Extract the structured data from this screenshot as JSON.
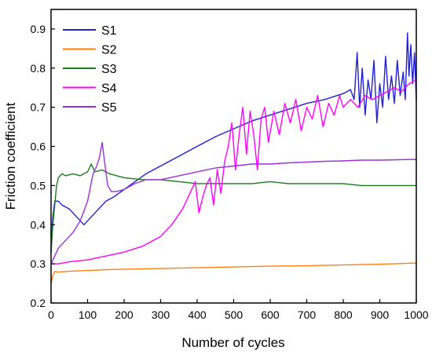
{
  "chart_data": {
    "type": "line",
    "xlabel": "Number of cycles",
    "ylabel": "Friction coefficient",
    "xlim": [
      0,
      1000
    ],
    "ylim": [
      0.2,
      0.95
    ],
    "xticks": [
      0,
      100,
      200,
      300,
      400,
      500,
      600,
      700,
      800,
      900,
      1000
    ],
    "yticks": [
      0.2,
      0.3,
      0.4,
      0.5,
      0.6,
      0.7,
      0.8,
      0.9
    ],
    "grid": false,
    "legend_position": "top-left",
    "series": [
      {
        "name": "S1",
        "color": "#1f1fd6",
        "x": [
          0,
          5,
          10,
          20,
          30,
          50,
          70,
          90,
          110,
          130,
          150,
          170,
          200,
          230,
          260,
          300,
          350,
          400,
          450,
          500,
          550,
          600,
          650,
          700,
          750,
          800,
          820,
          830,
          838,
          845,
          852,
          860,
          868,
          876,
          884,
          892,
          900,
          908,
          916,
          924,
          932,
          940,
          948,
          956,
          964,
          970,
          976,
          980,
          985,
          990,
          995,
          1000
        ],
        "y": [
          0.33,
          0.42,
          0.46,
          0.46,
          0.45,
          0.44,
          0.42,
          0.4,
          0.42,
          0.44,
          0.46,
          0.47,
          0.49,
          0.51,
          0.53,
          0.55,
          0.575,
          0.6,
          0.625,
          0.645,
          0.665,
          0.68,
          0.695,
          0.71,
          0.72,
          0.735,
          0.745,
          0.72,
          0.84,
          0.7,
          0.8,
          0.68,
          0.77,
          0.72,
          0.82,
          0.66,
          0.76,
          0.7,
          0.83,
          0.72,
          0.78,
          0.71,
          0.82,
          0.73,
          0.79,
          0.72,
          0.89,
          0.78,
          0.86,
          0.76,
          0.84,
          0.72
        ]
      },
      {
        "name": "S2",
        "color": "#ff7f0e",
        "x": [
          0,
          5,
          10,
          20,
          50,
          100,
          150,
          200,
          300,
          400,
          500,
          600,
          700,
          800,
          900,
          1000
        ],
        "y": [
          0.25,
          0.27,
          0.28,
          0.279,
          0.281,
          0.283,
          0.285,
          0.286,
          0.288,
          0.29,
          0.292,
          0.294,
          0.295,
          0.297,
          0.299,
          0.302
        ]
      },
      {
        "name": "S3",
        "color": "#1a7a1a",
        "x": [
          0,
          5,
          10,
          15,
          20,
          25,
          30,
          40,
          60,
          80,
          100,
          110,
          120,
          140,
          160,
          200,
          250,
          300,
          350,
          400,
          450,
          500,
          550,
          600,
          650,
          700,
          750,
          800,
          850,
          900,
          950,
          1000
        ],
        "y": [
          0.33,
          0.4,
          0.45,
          0.5,
          0.52,
          0.525,
          0.53,
          0.525,
          0.53,
          0.525,
          0.535,
          0.555,
          0.535,
          0.54,
          0.53,
          0.52,
          0.515,
          0.515,
          0.51,
          0.505,
          0.505,
          0.505,
          0.505,
          0.51,
          0.505,
          0.505,
          0.505,
          0.505,
          0.5,
          0.5,
          0.5,
          0.5
        ]
      },
      {
        "name": "S4",
        "color": "#ff00ff",
        "x": [
          0,
          20,
          50,
          100,
          150,
          200,
          250,
          300,
          330,
          360,
          380,
          395,
          405,
          415,
          425,
          435,
          445,
          455,
          465,
          475,
          485,
          495,
          505,
          515,
          525,
          535,
          545,
          555,
          565,
          575,
          585,
          595,
          610,
          625,
          640,
          655,
          670,
          685,
          700,
          715,
          730,
          745,
          760,
          775,
          790,
          800,
          820,
          840,
          860,
          880,
          900,
          920,
          940,
          960,
          980,
          1000
        ],
        "y": [
          0.3,
          0.3,
          0.305,
          0.31,
          0.32,
          0.33,
          0.345,
          0.37,
          0.4,
          0.44,
          0.48,
          0.51,
          0.43,
          0.47,
          0.5,
          0.52,
          0.45,
          0.54,
          0.48,
          0.56,
          0.6,
          0.66,
          0.54,
          0.63,
          0.7,
          0.58,
          0.69,
          0.63,
          0.54,
          0.67,
          0.7,
          0.61,
          0.69,
          0.63,
          0.71,
          0.66,
          0.72,
          0.64,
          0.7,
          0.67,
          0.73,
          0.65,
          0.71,
          0.68,
          0.73,
          0.7,
          0.72,
          0.7,
          0.73,
          0.72,
          0.73,
          0.74,
          0.75,
          0.74,
          0.76,
          0.77
        ]
      },
      {
        "name": "S5",
        "color": "#9b30d9",
        "x": [
          0,
          10,
          20,
          40,
          60,
          80,
          100,
          115,
          125,
          132,
          140,
          148,
          155,
          165,
          180,
          200,
          230,
          260,
          300,
          350,
          400,
          450,
          500,
          550,
          600,
          650,
          700,
          750,
          800,
          850,
          900,
          950,
          1000
        ],
        "y": [
          0.3,
          0.32,
          0.34,
          0.36,
          0.38,
          0.41,
          0.46,
          0.53,
          0.55,
          0.57,
          0.61,
          0.55,
          0.5,
          0.485,
          0.485,
          0.49,
          0.505,
          0.515,
          0.515,
          0.525,
          0.535,
          0.545,
          0.55,
          0.555,
          0.555,
          0.558,
          0.56,
          0.562,
          0.563,
          0.565,
          0.565,
          0.566,
          0.567
        ]
      }
    ]
  }
}
